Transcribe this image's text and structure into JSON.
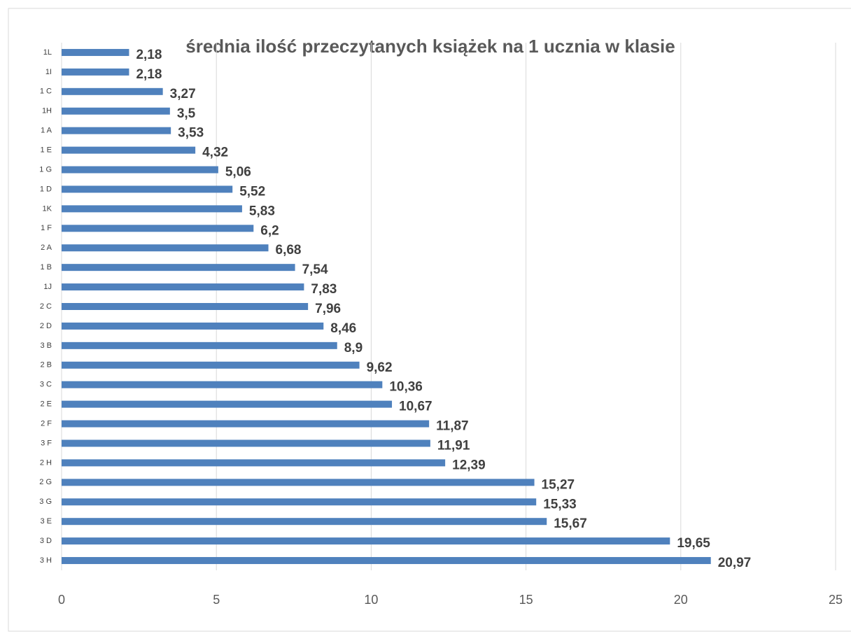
{
  "chart_data": {
    "type": "barh",
    "title": "średnia ilość przeczytanych książek na 1 ucznia w klasie",
    "categories": [
      "1L",
      "1I",
      "1 C",
      "1H",
      "1 A",
      "1 E",
      "1 G",
      "1 D",
      "1K",
      "1 F",
      "2 A",
      "1 B",
      "1J",
      "2 C",
      "2 D",
      "3 B",
      "2 B",
      "3 C",
      "2 E",
      "2 F",
      "3 F",
      "2 H",
      "2 G",
      "3 G",
      "3 E",
      "3 D",
      "3 H"
    ],
    "values": [
      2.18,
      2.18,
      3.27,
      3.5,
      3.53,
      4.32,
      5.06,
      5.52,
      5.83,
      6.2,
      6.68,
      7.54,
      7.83,
      7.96,
      8.46,
      8.9,
      9.62,
      10.36,
      10.67,
      11.87,
      11.91,
      12.39,
      15.27,
      15.33,
      15.67,
      19.65,
      20.97
    ],
    "value_labels": [
      "2,18",
      "2,18",
      "3,27",
      "3,5",
      "3,53",
      "4,32",
      "5,06",
      "5,52",
      "5,83",
      "6,2",
      "6,68",
      "7,54",
      "7,83",
      "7,96",
      "8,46",
      "8,9",
      "9,62",
      "10,36",
      "10,67",
      "11,87",
      "11,91",
      "12,39",
      "15,27",
      "15,33",
      "15,67",
      "19,65",
      "20,97"
    ],
    "color": "#4f81bd",
    "xlim": [
      0,
      25
    ],
    "xticks": [
      0,
      5,
      10,
      15,
      20,
      25
    ],
    "grid": true
  }
}
